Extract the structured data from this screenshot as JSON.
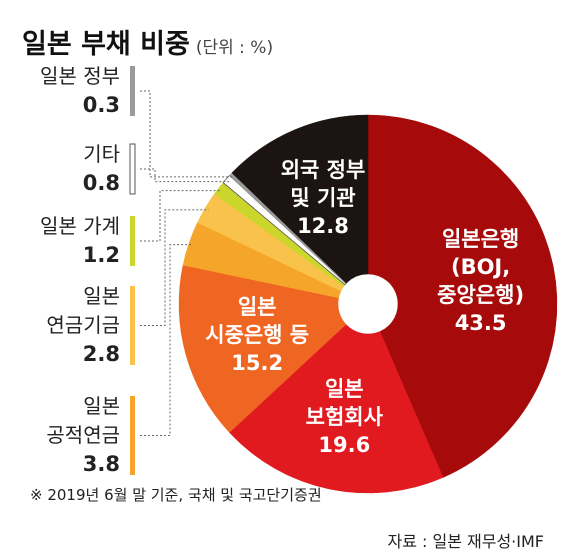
{
  "chart_data": {
    "type": "donut",
    "title": "일본 부채 비중",
    "subtitle": "(단위 : %)",
    "categories": [
      "일본은행\n(BOJ,\n중앙은행)",
      "일본\n보험회사",
      "일본\n시중은행 등",
      "일본\n공적연금",
      "일본\n연금기금",
      "일본 가계",
      "기타",
      "일본 정부",
      "외국 정부\n및 기관"
    ],
    "values": [
      43.5,
      19.6,
      15.2,
      3.8,
      2.8,
      1.2,
      0.8,
      0.3,
      12.8
    ],
    "colors": [
      "#a60a0a",
      "#e01a1f",
      "#ef6522",
      "#f6a52b",
      "#f9c24a",
      "#cbd62c",
      "#ffffff",
      "#9a9a9a",
      "#1c1412"
    ],
    "note": "※ 2019년 6월 말 기준, 국채 및 국고단기증권",
    "source": "자료 : 일본 재무성·IMF"
  }
}
